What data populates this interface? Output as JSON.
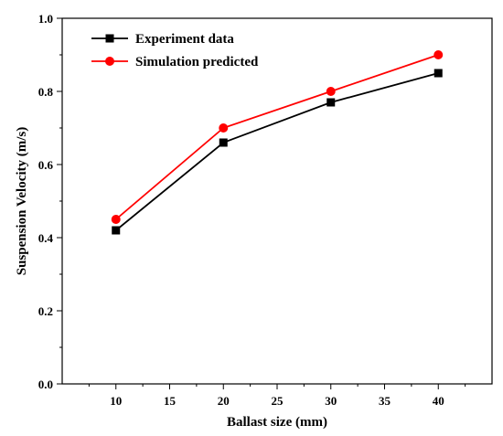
{
  "chart_data": {
    "type": "line",
    "x": [
      10,
      20,
      30,
      40
    ],
    "series": [
      {
        "name": "Experiment data",
        "values": [
          0.42,
          0.66,
          0.77,
          0.85
        ],
        "color": "#000000",
        "marker": "square"
      },
      {
        "name": "Simulation predicted",
        "values": [
          0.45,
          0.7,
          0.8,
          0.9
        ],
        "color": "#ff0000",
        "marker": "circle"
      }
    ],
    "title": "",
    "xlabel": "Ballast size (mm)",
    "ylabel": "Suspension Velocity (m/s)",
    "xlim": [
      5,
      45
    ],
    "ylim": [
      0.0,
      1.0
    ],
    "xticks": [
      "10",
      "15",
      "20",
      "25",
      "30",
      "35",
      "40"
    ],
    "yticks": [
      "0.0",
      "0.2",
      "0.4",
      "0.6",
      "0.8",
      "1.0"
    ],
    "grid": false,
    "legend_position": "top-left"
  }
}
